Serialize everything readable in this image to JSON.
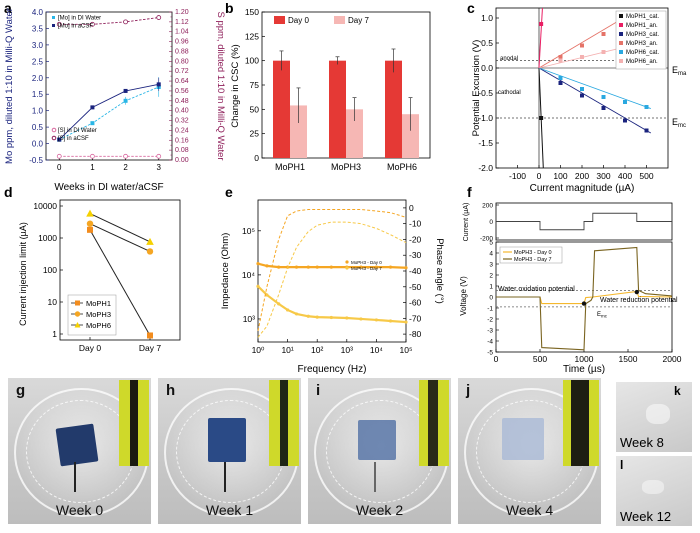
{
  "panels": {
    "a": {
      "label": "a",
      "ylabel_left": "Mo ppm, diluted 1:10 in Milli-Q Water",
      "ylabel_right": "S ppm, diluted 1:10 in Milli-Q Water",
      "xlabel": "Weeks in DI water/aCSF",
      "legend_top": [
        "[Mo] in DI Water",
        "[Mo] in aCSF"
      ],
      "legend_bottom": [
        "[S] in DI Water",
        "[S] in aCSF"
      ],
      "colors": {
        "mo_di": "#29b6e6",
        "mo_acsf": "#1a237e",
        "s_di": "#d96aa0",
        "s_acsf": "#8e1f5a"
      }
    },
    "b": {
      "label": "b",
      "ylabel": "Change in CSC (%)",
      "legend": [
        "Day 0",
        "Day 7"
      ],
      "colors": {
        "day0": "#e53935",
        "day7": "#f6b7b4"
      }
    },
    "c": {
      "label": "c",
      "ylabel": "Potential Excursion (V)",
      "xlabel": "Current magnitude (µA)",
      "anodal": "anodal",
      "cathodal": "cathodal",
      "ema": "E",
      "ema_sub": "ma",
      "emc": "E",
      "emc_sub": "mc",
      "legend": [
        "MoPH1_cat.",
        "MoPH1_an.",
        "MoPH3_cat.",
        "MoPH3_an.",
        "MoPH6_cat.",
        "MoPH6_an."
      ],
      "colors": [
        "#111111",
        "#e91e63",
        "#1a237e",
        "#e57368",
        "#29a8e0",
        "#f4b1b1"
      ]
    },
    "d": {
      "label": "d",
      "ylabel": "Current injection limit (µA)",
      "legend": [
        "MoPH1",
        "MoPH3",
        "MoPH6"
      ],
      "colors": {
        "MoPH1": "#f28c1e",
        "MoPH3": "#f5a623",
        "MoPH6": "#f5d100"
      }
    },
    "e": {
      "label": "e",
      "ylabel_left": "Impedance (Ohm)",
      "ylabel_right": "Phase angle (°)",
      "xlabel": "Frequency (Hz)",
      "legend": [
        "MoPH3 - Day 0",
        "MoPH3 - Day 7"
      ],
      "colors": {
        "day0": "#f5a623",
        "day7": "#f7c948"
      }
    },
    "f": {
      "label": "f",
      "ylabel_top": "Current (µA)",
      "ylabel_bottom": "Voltage (V)",
      "xlabel": "Time (µs)",
      "legend": [
        "MoPH3 - Day 0",
        "MoPH3 - Day 7"
      ],
      "water_ox": "Water oxidation potential",
      "water_red": "Water reduction potential",
      "emc": "E",
      "emc_sub": "mc",
      "colors": {
        "day0": "#f5b82e",
        "day7": "#7a6420"
      }
    },
    "photos": [
      {
        "label": "g",
        "week": "Week 0"
      },
      {
        "label": "h",
        "week": "Week 1"
      },
      {
        "label": "i",
        "week": "Week 2"
      },
      {
        "label": "j",
        "week": "Week 4"
      },
      {
        "label": "k",
        "week": "Week 8"
      },
      {
        "label": "l",
        "week": "Week 12"
      }
    ]
  },
  "chart_data": [
    {
      "type": "line",
      "panel": "a",
      "x": [
        0,
        1,
        2,
        3
      ],
      "xticks": [
        "0",
        "1",
        "2",
        "3"
      ],
      "ylim": [
        -0.5,
        4.0
      ],
      "yticks": [
        "-0.5",
        "0.0",
        "0.5",
        "1.0",
        "1.5",
        "2.0",
        "2.5",
        "3.0",
        "3.5",
        "4.0"
      ],
      "ylim_right": [
        0.0,
        1.2
      ],
      "yticks_right": [
        "0.00",
        "0.04",
        "0.08",
        "0.12",
        "0.16",
        "0.20",
        "0.24",
        "0.28",
        "0.32",
        "0.36",
        "0.40",
        "0.44",
        "0.48",
        "0.52",
        "0.56",
        "0.60",
        "0.64",
        "0.68",
        "0.72",
        "0.76",
        "0.80",
        "0.84",
        "0.88",
        "0.92",
        "0.96",
        "1.00",
        "1.04",
        "1.08",
        "1.12",
        "1.16",
        "1.20"
      ],
      "series": [
        {
          "name": "[Mo] in DI Water",
          "axis": "left",
          "values": [
            0.12,
            0.62,
            1.3,
            1.72
          ],
          "err": [
            0.02,
            0.05,
            0.12,
            0.3
          ]
        },
        {
          "name": "[Mo] in aCSF",
          "axis": "left",
          "values": [
            0.12,
            1.1,
            1.6,
            1.8
          ],
          "err": [
            0.02,
            0.05,
            0.06,
            0.2
          ]
        },
        {
          "name": "[S] in DI Water",
          "axis": "right",
          "values": [
            0.03,
            0.03,
            0.03,
            0.03
          ],
          "err": [
            0.004,
            0.004,
            0.004,
            0.004
          ]
        },
        {
          "name": "[S] in aCSF",
          "axis": "right",
          "values": [
            1.1,
            1.1,
            1.12,
            1.155
          ],
          "err": [
            0.004,
            0.004,
            0.005,
            0.015
          ]
        }
      ]
    },
    {
      "type": "bar",
      "panel": "b",
      "categories": [
        "MoPH1",
        "MoPH3",
        "MoPH6"
      ],
      "ylim": [
        0,
        150
      ],
      "yticks": [
        "0",
        "25",
        "50",
        "75",
        "100",
        "125",
        "150"
      ],
      "series": [
        {
          "name": "Day 0",
          "values": [
            100,
            100,
            100
          ],
          "err": [
            10,
            4,
            12
          ]
        },
        {
          "name": "Day 7",
          "values": [
            54,
            50,
            45
          ],
          "err": [
            18,
            12,
            17
          ]
        }
      ]
    },
    {
      "type": "scatter",
      "panel": "c",
      "xlim": [
        -200,
        600
      ],
      "ylim": [
        -2.0,
        1.2
      ],
      "xticks": [
        "-100",
        "0",
        "100",
        "200",
        "300",
        "400",
        "500"
      ],
      "yticks": [
        "-2.0",
        "-1.5",
        "-1.0",
        "-0.5",
        "0.0",
        "0.5",
        "1.0"
      ],
      "ema_value": 0.15,
      "emc_value": -1.0,
      "series": [
        {
          "name": "MoPH1_cat.",
          "x": [
            10
          ],
          "y": [
            -1.0
          ]
        },
        {
          "name": "MoPH1_an.",
          "x": [
            10
          ],
          "y": [
            0.88
          ]
        },
        {
          "name": "MoPH3_cat.",
          "x": [
            100,
            200,
            300,
            400,
            500
          ],
          "y": [
            -0.3,
            -0.55,
            -0.8,
            -1.05,
            -1.25
          ]
        },
        {
          "name": "MoPH3_an.",
          "x": [
            100,
            200,
            300,
            400
          ],
          "y": [
            0.22,
            0.45,
            0.68,
            1.02
          ]
        },
        {
          "name": "MoPH6_cat.",
          "x": [
            100,
            200,
            300,
            400,
            500
          ],
          "y": [
            -0.2,
            -0.42,
            -0.58,
            -0.68,
            -0.78
          ]
        },
        {
          "name": "MoPH6_an.",
          "x": [
            100,
            200,
            300,
            400
          ],
          "y": [
            0.15,
            0.22,
            0.32,
            0.42
          ]
        }
      ]
    },
    {
      "type": "line",
      "panel": "d",
      "categories": [
        "Day 0",
        "Day 7"
      ],
      "ylog": true,
      "ylim": [
        1,
        10000
      ],
      "yticks": [
        "1",
        "10",
        "100",
        "1000",
        "10000"
      ],
      "series": [
        {
          "name": "MoPH1",
          "values": [
            1800,
            0.9
          ]
        },
        {
          "name": "MoPH3",
          "values": [
            2800,
            380
          ]
        },
        {
          "name": "MoPH6",
          "values": [
            5800,
            760
          ]
        }
      ]
    },
    {
      "type": "line",
      "panel": "e",
      "xlog": true,
      "xlim": [
        1,
        100000
      ],
      "xticks": [
        "10⁰",
        "10¹",
        "10²",
        "10³",
        "10⁴",
        "10⁵"
      ],
      "ylog": true,
      "ylim": [
        300,
        500000
      ],
      "yticks": [
        "10³",
        "10⁴",
        "10⁵"
      ],
      "ylim_right": [
        -85,
        5
      ],
      "yticks_right": [
        "0",
        "-10",
        "-20",
        "-30",
        "-40",
        "-50",
        "-60",
        "-70",
        "-80"
      ],
      "freq": [
        1,
        2,
        5,
        10,
        20,
        50,
        100,
        300,
        1000,
        3000,
        10000,
        30000,
        100000
      ],
      "series": [
        {
          "name": "MoPH3 - Day 0 |Z|",
          "axis": "left",
          "values": [
            18000,
            16000,
            15000,
            15000,
            15000,
            15000,
            15000,
            15000,
            15000,
            15000,
            15000,
            15000,
            14500
          ]
        },
        {
          "name": "MoPH3 - Day 7 |Z|",
          "axis": "left",
          "values": [
            5500,
            3500,
            2200,
            1600,
            1300,
            1150,
            1100,
            1080,
            1050,
            1000,
            950,
            900,
            850
          ]
        },
        {
          "name": "MoPH3 - Day 0 phase",
          "axis": "right",
          "values": [
            -78,
            -50,
            -20,
            -5,
            -2,
            -1,
            -1,
            -1,
            -1,
            -1,
            -2,
            -3,
            -6
          ]
        },
        {
          "name": "MoPH3 - Day 7 phase",
          "axis": "right",
          "values": [
            -82,
            -75,
            -55,
            -38,
            -25,
            -15,
            -11,
            -9,
            -9,
            -10,
            -13,
            -17,
            -22
          ]
        }
      ]
    },
    {
      "type": "line",
      "panel": "f",
      "xlim": [
        0,
        2000
      ],
      "xticks": [
        "0",
        "500",
        "1000",
        "1500",
        "2000"
      ],
      "ylim": [
        -5,
        5
      ],
      "yticks": [
        "-5",
        "-4",
        "-3",
        "-2",
        "-1",
        "0",
        "1",
        "2",
        "3",
        "4",
        "5"
      ],
      "ylim_top": [
        -200,
        200
      ],
      "yticks_top": [
        "200",
        "0",
        "-200"
      ],
      "current": {
        "t": [
          0,
          500,
          500,
          1000,
          1000,
          1100,
          1100,
          1600,
          1600,
          2000
        ],
        "v": [
          0,
          0,
          -100,
          -100,
          0,
          0,
          100,
          100,
          0,
          0
        ]
      },
      "water_ox_value": 0.6,
      "water_red_value": -0.9,
      "series": [
        {
          "name": "MoPH3 - Day 0",
          "t": [
            0,
            500,
            520,
            1000,
            1020,
            1100,
            1600,
            1620,
            2000
          ],
          "v": [
            0,
            0,
            -0.6,
            -0.6,
            -0.05,
            0,
            0.5,
            0.05,
            0
          ]
        },
        {
          "name": "MoPH3 - Day 7",
          "t": [
            0,
            500,
            520,
            1000,
            1020,
            1080,
            1100,
            1120,
            1600,
            1620,
            1700,
            2000
          ],
          "v": [
            0,
            0,
            -4.6,
            -4.8,
            -0.6,
            -0.3,
            0,
            4.2,
            4.5,
            0.6,
            0.3,
            0.1
          ]
        }
      ]
    }
  ]
}
